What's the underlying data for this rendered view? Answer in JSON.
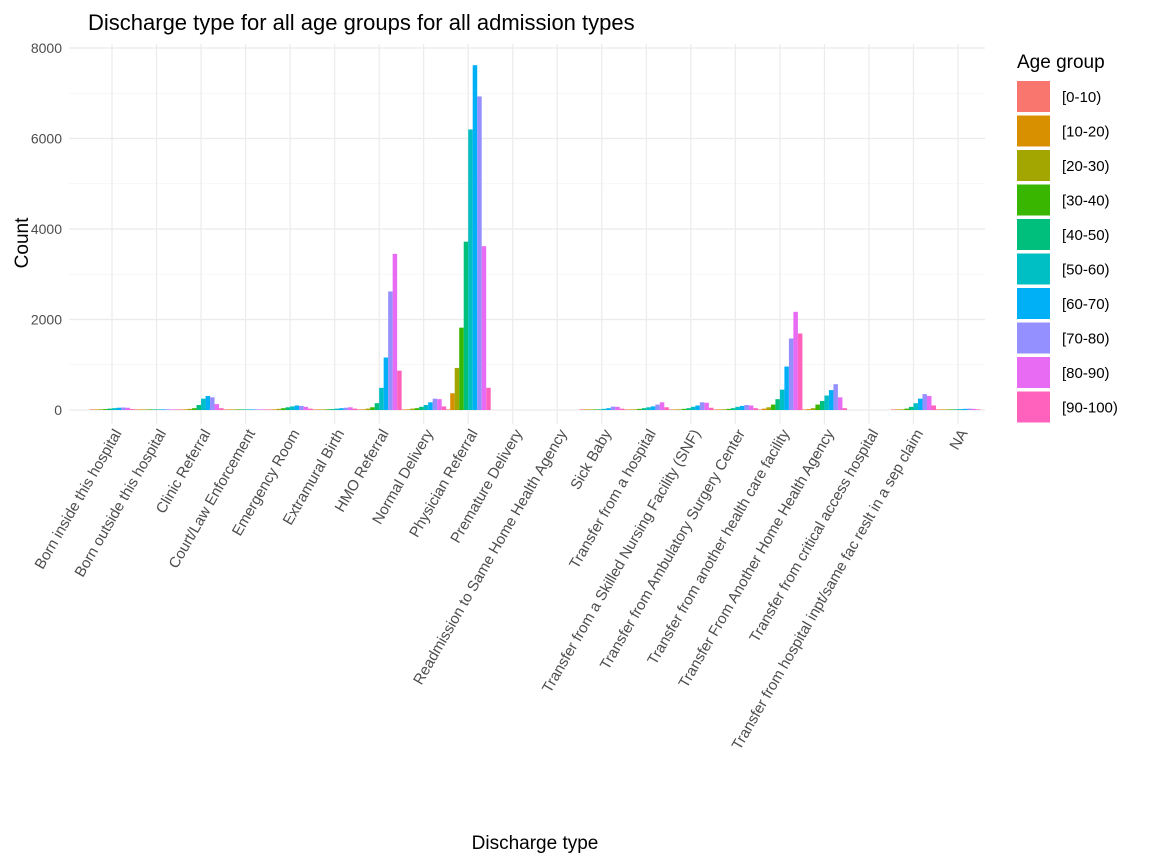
{
  "chart_data": {
    "type": "bar",
    "title": "Discharge type for all age groups for all admission types",
    "xlabel": "Discharge type",
    "ylabel": "Count",
    "ylim": [
      0,
      8000
    ],
    "yticks": [
      0,
      2000,
      4000,
      6000,
      8000
    ],
    "grid": true,
    "legend": {
      "title": "Age group",
      "position": "right"
    },
    "categories": [
      "Born inside this hospital",
      "Born outside this hospital",
      "Clinic Referral",
      "Court/Law Enforcement",
      "Emergency Room",
      "Extramural Birth",
      "HMO Referral",
      "Normal Delivery",
      "Physician Referral",
      "Premature Delivery",
      "Readmission to Same Home Health Agency",
      "Sick Baby",
      "Transfer from a hospital",
      "Transfer from a Skilled Nursing Facility (SNF)",
      "Transfer from Ambulatory Surgery Center",
      "Transfer from another health care facility",
      "Transfer From Another Home Health Agency",
      "Transfer from critical access hospital",
      "Transfer from hospital inpt/same fac reslt in a sep claim",
      "NA"
    ],
    "series": [
      {
        "name": "[0-10)",
        "color": "#F8766D",
        "values": [
          5,
          3,
          5,
          2,
          5,
          3,
          5,
          5,
          10,
          0,
          0,
          5,
          5,
          5,
          5,
          5,
          5,
          0,
          5,
          3
        ]
      },
      {
        "name": "[10-20)",
        "color": "#D89000",
        "values": [
          10,
          5,
          15,
          3,
          15,
          5,
          15,
          15,
          370,
          0,
          0,
          5,
          10,
          10,
          10,
          30,
          20,
          0,
          10,
          5
        ]
      },
      {
        "name": "[20-30)",
        "color": "#A3A500",
        "values": [
          15,
          5,
          25,
          3,
          25,
          10,
          30,
          30,
          930,
          0,
          0,
          5,
          15,
          15,
          15,
          60,
          40,
          0,
          15,
          8
        ]
      },
      {
        "name": "[30-40)",
        "color": "#39B600",
        "values": [
          20,
          8,
          40,
          5,
          40,
          15,
          60,
          40,
          1820,
          0,
          0,
          10,
          25,
          25,
          25,
          120,
          120,
          0,
          30,
          10
        ]
      },
      {
        "name": "[40-50)",
        "color": "#00BF7D",
        "values": [
          30,
          10,
          110,
          8,
          60,
          20,
          150,
          70,
          3720,
          0,
          0,
          15,
          40,
          40,
          40,
          240,
          200,
          0,
          70,
          15
        ]
      },
      {
        "name": "[50-60)",
        "color": "#00BFC4",
        "values": [
          40,
          12,
          250,
          10,
          80,
          30,
          490,
          110,
          6200,
          0,
          0,
          25,
          60,
          70,
          70,
          450,
          320,
          0,
          150,
          20
        ]
      },
      {
        "name": "[60-70)",
        "color": "#00B0F6",
        "values": [
          50,
          15,
          310,
          12,
          100,
          40,
          1160,
          170,
          7620,
          0,
          0,
          40,
          80,
          100,
          90,
          960,
          440,
          0,
          250,
          25
        ]
      },
      {
        "name": "[70-80)",
        "color": "#9590FF",
        "values": [
          55,
          15,
          280,
          12,
          90,
          50,
          2620,
          250,
          6930,
          0,
          0,
          75,
          120,
          170,
          110,
          1580,
          570,
          0,
          350,
          30
        ]
      },
      {
        "name": "[80-90)",
        "color": "#E76BF3",
        "values": [
          50,
          12,
          130,
          10,
          70,
          60,
          3450,
          240,
          3620,
          0,
          0,
          70,
          170,
          160,
          100,
          2170,
          280,
          0,
          310,
          25
        ]
      },
      {
        "name": "[90-100)",
        "color": "#FF62BC",
        "values": [
          20,
          5,
          40,
          5,
          30,
          30,
          870,
          80,
          490,
          0,
          0,
          30,
          60,
          50,
          40,
          1690,
          40,
          0,
          100,
          10
        ]
      }
    ]
  }
}
